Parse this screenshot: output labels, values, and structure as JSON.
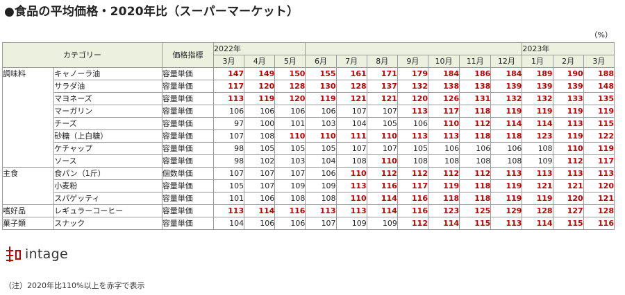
{
  "title": "●食品の平均価格・2020年比（スーパーマーケット）",
  "unit": "（%）",
  "header": {
    "category": "カテゴリー",
    "price_index": "価格指標",
    "year1": "2022年",
    "year2": "2023年"
  },
  "note": "（注）2020年比110%以上を赤字で表示",
  "logo_text": "intage",
  "colors": {
    "highlight": "#c00000",
    "header_bg": "#ebf1de"
  },
  "chart_data": {
    "type": "table",
    "title": "●食品の平均価格・2020年比（スーパーマーケット）",
    "threshold": 110,
    "months": [
      "3月",
      "4月",
      "5月",
      "6月",
      "7月",
      "8月",
      "9月",
      "10月",
      "11月",
      "12月",
      "1月",
      "2月",
      "3月"
    ],
    "groups": [
      {
        "name": "調味料",
        "items": [
          {
            "name": "キャノーラ油",
            "index": "容量単価",
            "values": [
              147,
              149,
              150,
              155,
              161,
              171,
              179,
              184,
              186,
              184,
              189,
              190,
              188
            ]
          },
          {
            "name": "サラダ油",
            "index": "容量単価",
            "values": [
              117,
              120,
              128,
              130,
              128,
              137,
              132,
              138,
              138,
              139,
              139,
              139,
              148
            ]
          },
          {
            "name": "マヨネーズ",
            "index": "容量単価",
            "values": [
              113,
              119,
              120,
              119,
              121,
              121,
              120,
              126,
              131,
              132,
              132,
              133,
              135
            ]
          },
          {
            "name": "マーガリン",
            "index": "容量単価",
            "values": [
              106,
              106,
              106,
              106,
              107,
              107,
              113,
              117,
              118,
              119,
              119,
              119,
              119
            ]
          },
          {
            "name": "チーズ",
            "index": "容量単価",
            "values": [
              97,
              100,
              101,
              103,
              104,
              105,
              106,
              110,
              112,
              114,
              114,
              113,
              115
            ]
          },
          {
            "name": "砂糖（上白糖）",
            "index": "容量単価",
            "values": [
              107,
              108,
              110,
              110,
              111,
              110,
              113,
              113,
              118,
              118,
              123,
              119,
              122
            ]
          },
          {
            "name": "ケチャップ",
            "index": "容量単価",
            "values": [
              98,
              105,
              105,
              105,
              107,
              107,
              105,
              106,
              106,
              106,
              108,
              110,
              119
            ]
          },
          {
            "name": "ソース",
            "index": "容量単価",
            "values": [
              98,
              102,
              103,
              104,
              108,
              110,
              108,
              108,
              108,
              108,
              109,
              112,
              117
            ]
          }
        ]
      },
      {
        "name": "主食",
        "items": [
          {
            "name": "食パン（1斤）",
            "index": "個数単価",
            "values": [
              107,
              107,
              107,
              106,
              110,
              112,
              112,
              112,
              112,
              113,
              113,
              113,
              113
            ]
          },
          {
            "name": "小麦粉",
            "index": "容量単価",
            "values": [
              105,
              107,
              109,
              109,
              113,
              116,
              117,
              119,
              118,
              119,
              121,
              121,
              120
            ]
          },
          {
            "name": "スパゲッティ",
            "index": "容量単価",
            "values": [
              101,
              106,
              108,
              108,
              110,
              114,
              116,
              118,
              118,
              119,
              119,
              120,
              121
            ]
          }
        ]
      },
      {
        "name": "嗜好品",
        "items": [
          {
            "name": "レギュラーコーヒー",
            "index": "容量単価",
            "values": [
              113,
              114,
              116,
              113,
              113,
              114,
              116,
              123,
              125,
              129,
              128,
              127,
              128
            ]
          }
        ]
      },
      {
        "name": "菓子類",
        "items": [
          {
            "name": "スナック",
            "index": "容量単価",
            "values": [
              104,
              106,
              106,
              107,
              109,
              109,
              112,
              114,
              115,
              113,
              114,
              115,
              116
            ]
          }
        ]
      }
    ]
  }
}
